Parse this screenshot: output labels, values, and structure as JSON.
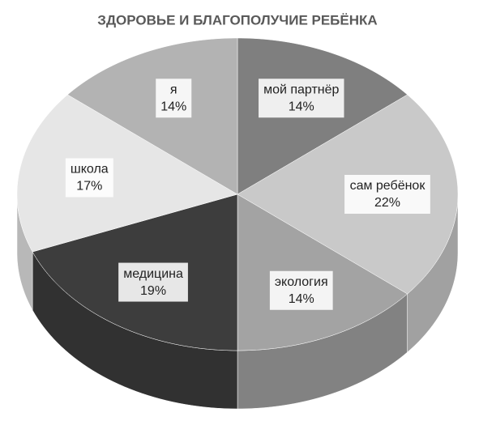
{
  "chart_data": {
    "type": "pie3d",
    "title": "ЗДОРОВЬЕ И БЛАГОПОЛУЧИЕ РЕБЁНКА",
    "categories": [
      "мой партнёр",
      "сам ребёнок",
      "экология",
      "медицина",
      "школа",
      "я"
    ],
    "values": [
      14,
      22,
      14,
      19,
      17,
      14
    ],
    "value_labels": [
      "14%",
      "22%",
      "14%",
      "19%",
      "17%",
      "14%"
    ],
    "colors": [
      "#7f7f7f",
      "#c9c9c9",
      "#a3a3a3",
      "#3d3d3d",
      "#e6e6e6",
      "#b3b3b3"
    ]
  }
}
